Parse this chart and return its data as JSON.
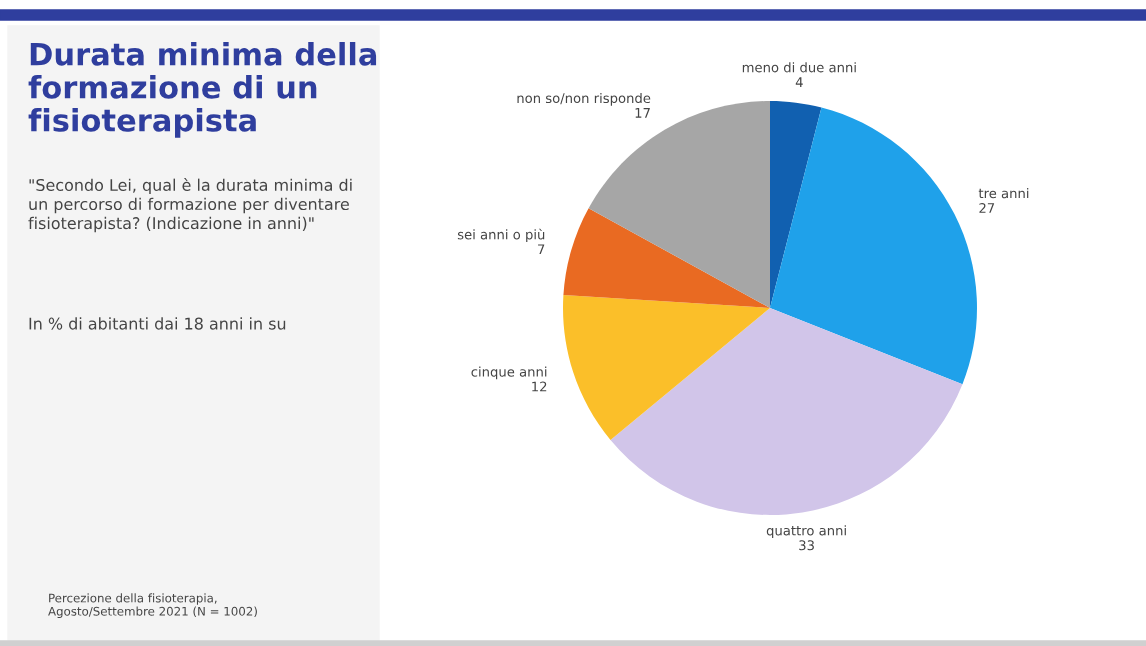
{
  "chart_data": {
    "type": "pie",
    "title": "Durata minima della\nformazione di un\nfisioterapista",
    "subtitle": "\"Secondo Lei, qual è la durata minima di\nun percorso di formazione per diventare\nfisioterapista? (Indicazione in anni)\"",
    "categories": [
      "meno di due anni",
      "tre anni",
      "quattro anni",
      "cinque anni",
      "sei anni o più",
      "non so/non risponde"
    ],
    "values": [
      4,
      27,
      33,
      12,
      7,
      17
    ],
    "colors": [
      "#1160b0",
      "#1fa1ea",
      "#d1c5e9",
      "#fbbf29",
      "#e96a22",
      "#a6a6a6"
    ],
    "data_labels": true,
    "legend": false,
    "annotations": [
      "In % di abitanti dai 18 anni in su",
      "Percezione della fisioterapia,\nAgosto/Settembre 2021 (N = 1002)"
    ]
  }
}
